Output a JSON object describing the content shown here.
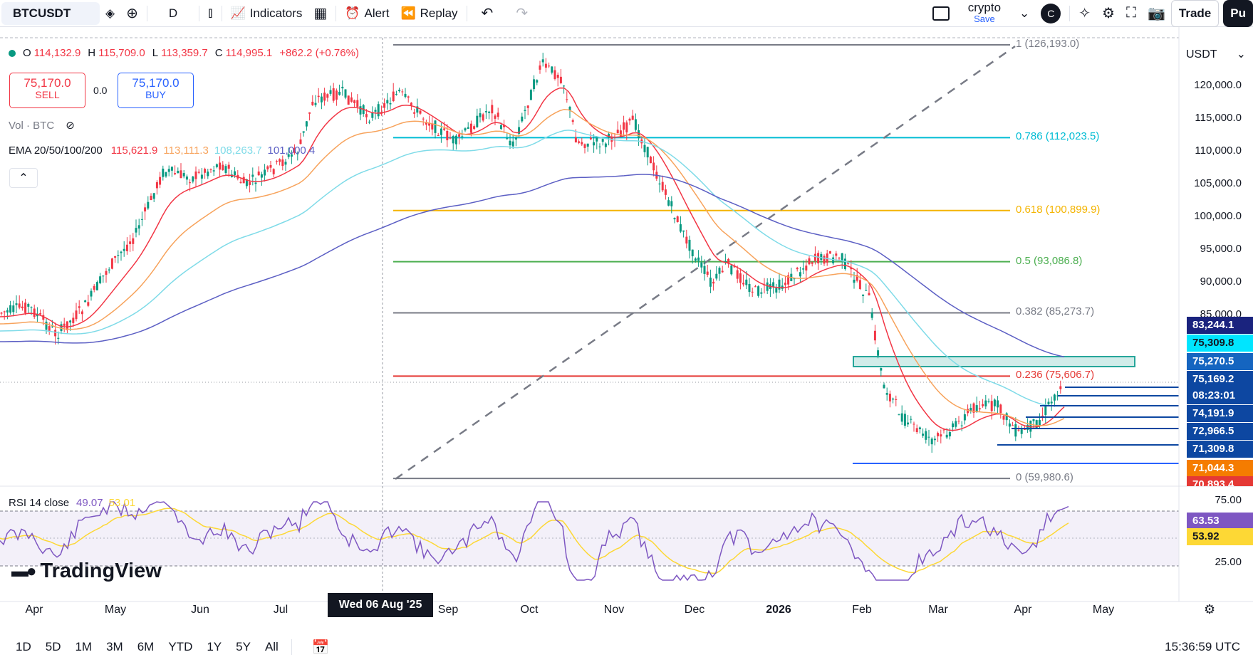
{
  "toolbar": {
    "symbol": "BTCUSDT",
    "interval": "D",
    "indicators": "Indicators",
    "alert": "Alert",
    "replay": "Replay",
    "layout_name": "crypto",
    "layout_save": "Save",
    "avatar_letter": "C",
    "trade": "Trade",
    "publish": "Pu"
  },
  "legend": {
    "ohlc": {
      "open_label": "O",
      "open": "114,132.9",
      "high_label": "H",
      "high": "115,709.0",
      "low_label": "L",
      "low": "113,359.7",
      "close_label": "C",
      "close": "114,995.1",
      "change": "+862.2 (+0.76%)"
    },
    "sell": {
      "price": "75,170.0",
      "label": "SELL"
    },
    "spread": "0.0",
    "buy": {
      "price": "75,170.0",
      "label": "BUY"
    },
    "vol": "Vol · BTC",
    "ema_label": "EMA 20/50/100/200",
    "ema20": "115,621.9",
    "ema50": "113,111.3",
    "ema100": "108,263.7",
    "ema200": "101,000.4",
    "rsi_label": "RSI 14 close",
    "rsi": "49.07",
    "rsi_ma": "53.01"
  },
  "currency": "USDT",
  "axis": {
    "price_ticks": [
      "120,000.0",
      "115,000.0",
      "110,000.0",
      "105,000.0",
      "100,000.0",
      "95,000.0",
      "90,000.0",
      "85,000.0"
    ],
    "rsi_ticks": [
      "75.00",
      "25.00"
    ],
    "months": [
      "Apr",
      "May",
      "Jun",
      "Jul",
      "Sep",
      "Oct",
      "Nov",
      "Dec",
      "2026",
      "Feb",
      "Mar",
      "Apr",
      "May"
    ],
    "crosshair_date": "Wed 06 Aug '25"
  },
  "fib": [
    {
      "label": "1 (126,193.0)",
      "price": 126193.0,
      "color": "#787b86"
    },
    {
      "label": "0.786 (112,023.5)",
      "price": 112023.5,
      "color": "#00bcd4"
    },
    {
      "label": "0.618 (100,899.9)",
      "price": 100899.9,
      "color": "#f4b400"
    },
    {
      "label": "0.5 (93,086.8)",
      "price": 93086.8,
      "color": "#4caf50"
    },
    {
      "label": "0.382 (85,273.7)",
      "price": 85273.7,
      "color": "#787b86"
    },
    {
      "label": "0.236 (75,606.7)",
      "price": 75606.7,
      "color": "#e53935"
    },
    {
      "label": "0 (59,980.6)",
      "price": 59980.6,
      "color": "#787b86"
    }
  ],
  "price_labels": [
    {
      "text": "83,244.1",
      "bg": "#1a237e"
    },
    {
      "text": "75,309.8",
      "bg": "#00e5ff",
      "fg": "#131722"
    },
    {
      "text": "75,270.5",
      "bg": "#1565c0"
    },
    {
      "text": "75,169.2",
      "bg": "#0d47a1"
    },
    {
      "text": "08:23:01",
      "bg": "#0d47a1"
    },
    {
      "text": "74,191.9",
      "bg": "#0d47a1"
    },
    {
      "text": "72,966.5",
      "bg": "#0d47a1"
    },
    {
      "text": "71,309.8",
      "bg": "#0d47a1"
    },
    {
      "text": "71,044.3",
      "bg": "#f57c00"
    },
    {
      "text": "70,893.4",
      "bg": "#e53935"
    }
  ],
  "rsi_labels": [
    {
      "text": "63.53",
      "bg": "#7e57c2"
    },
    {
      "text": "53.92",
      "bg": "#fdd835",
      "fg": "#131722"
    }
  ],
  "branding": "TradingView",
  "ranges": [
    "1D",
    "5D",
    "1M",
    "3M",
    "6M",
    "YTD",
    "1Y",
    "5Y",
    "All"
  ],
  "clock": "15:36:59 UTC",
  "colors": {
    "up": "#089981",
    "down": "#f23645",
    "ema20": "#f23645",
    "ema50": "#f7a35c",
    "ema100": "#7fdbe8",
    "ema200": "#5c5fc4"
  }
}
